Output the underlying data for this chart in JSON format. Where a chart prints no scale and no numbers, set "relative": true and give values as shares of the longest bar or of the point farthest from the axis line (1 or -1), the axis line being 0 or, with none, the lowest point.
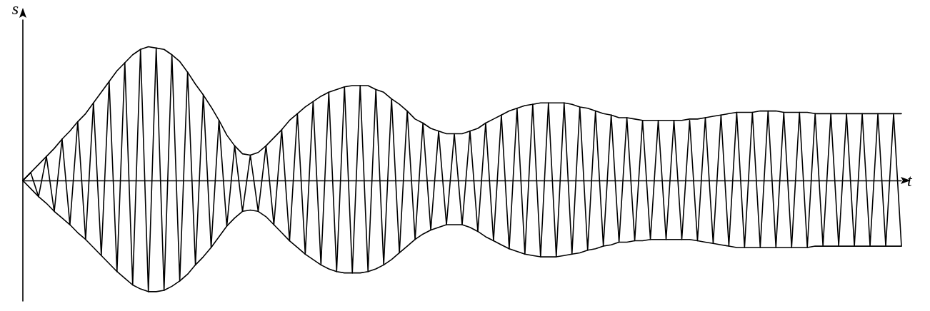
{
  "chart_data": {
    "type": "line",
    "relative": true,
    "xlabel": "t",
    "ylabel": "s",
    "marker": "none",
    "line_style": "solid",
    "grid": false,
    "categories": [
      null,
      null,
      null,
      null,
      null,
      null,
      null,
      null,
      null,
      null,
      null,
      null,
      null,
      null,
      null,
      null,
      null,
      null,
      null,
      null,
      null,
      null,
      null,
      null,
      null,
      null,
      null,
      null,
      null,
      null,
      null,
      null,
      null,
      null,
      null,
      null,
      null,
      null,
      null,
      null,
      null,
      null,
      null,
      null,
      null,
      null,
      null,
      null,
      null,
      null,
      null,
      null,
      null,
      null,
      null,
      null,
      null,
      null,
      null,
      null,
      null,
      null,
      null,
      null,
      null,
      null,
      null,
      null,
      null,
      null,
      null,
      null,
      null,
      null,
      null,
      null,
      null,
      null,
      null,
      null,
      null,
      null,
      null,
      null,
      null,
      null,
      null,
      null,
      null,
      null,
      null,
      null,
      null,
      null,
      null,
      null,
      null,
      null,
      null,
      null,
      null,
      null,
      null,
      null,
      null,
      null,
      null,
      null,
      null,
      null,
      null,
      null,
      null
    ],
    "series": [
      {
        "color": "#000000",
        "values": [
          0,
          0.06,
          0.12,
          0.18,
          0.24,
          0.31,
          0.37,
          0.44,
          0.5,
          0.58,
          0.66,
          0.74,
          0.82,
          0.88,
          0.94,
          0.98,
          1,
          0.99,
          0.98,
          0.94,
          0.89,
          0.81,
          0.72,
          0.64,
          0.55,
          0.45,
          0.34,
          0.26,
          0.2,
          0.19,
          0.21,
          0.26,
          0.32,
          0.38,
          0.45,
          0.5,
          0.55,
          0.59,
          0.63,
          0.66,
          0.68,
          0.7,
          0.71,
          0.71,
          0.71,
          0.68,
          0.66,
          0.61,
          0.57,
          0.52,
          0.46,
          0.43,
          0.39,
          0.37,
          0.35,
          0.35,
          0.35,
          0.37,
          0.39,
          0.43,
          0.46,
          0.49,
          0.52,
          0.54,
          0.56,
          0.57,
          0.58,
          0.58,
          0.58,
          0.58,
          0.57,
          0.55,
          0.54,
          0.52,
          0.5,
          0.49,
          0.47,
          0.47,
          0.46,
          0.45,
          0.45,
          0.45,
          0.45,
          0.45,
          0.45,
          0.46,
          0.46,
          0.47,
          0.48,
          0.49,
          0.5,
          0.51,
          0.51,
          0.51,
          0.52,
          0.52,
          0.52,
          0.51,
          0.51,
          0.51,
          0.51,
          0.5,
          0.5,
          0.5,
          0.5,
          0.5,
          0.5,
          0.5,
          0.5,
          0.5,
          0.5,
          0.5,
          0.5
        ]
      },
      {
        "color": "#000000",
        "values": [
          0,
          -0.06,
          -0.12,
          -0.17,
          -0.23,
          -0.28,
          -0.33,
          -0.39,
          -0.44,
          -0.5,
          -0.56,
          -0.62,
          -0.68,
          -0.73,
          -0.78,
          -0.81,
          -0.83,
          -0.83,
          -0.82,
          -0.79,
          -0.75,
          -0.7,
          -0.63,
          -0.57,
          -0.5,
          -0.42,
          -0.34,
          -0.28,
          -0.23,
          -0.22,
          -0.23,
          -0.27,
          -0.33,
          -0.39,
          -0.45,
          -0.5,
          -0.55,
          -0.59,
          -0.63,
          -0.66,
          -0.68,
          -0.69,
          -0.69,
          -0.69,
          -0.68,
          -0.66,
          -0.63,
          -0.59,
          -0.54,
          -0.49,
          -0.44,
          -0.4,
          -0.37,
          -0.35,
          -0.33,
          -0.33,
          -0.33,
          -0.35,
          -0.38,
          -0.42,
          -0.45,
          -0.48,
          -0.51,
          -0.53,
          -0.55,
          -0.56,
          -0.57,
          -0.57,
          -0.57,
          -0.56,
          -0.55,
          -0.54,
          -0.52,
          -0.51,
          -0.49,
          -0.48,
          -0.46,
          -0.46,
          -0.45,
          -0.45,
          -0.44,
          -0.44,
          -0.44,
          -0.44,
          -0.44,
          -0.44,
          -0.45,
          -0.46,
          -0.47,
          -0.48,
          -0.49,
          -0.5,
          -0.5,
          -0.5,
          -0.5,
          -0.5,
          -0.5,
          -0.5,
          -0.5,
          -0.5,
          -0.5,
          -0.49,
          -0.49,
          -0.49,
          -0.49,
          -0.49,
          -0.49,
          -0.49,
          -0.49,
          -0.49,
          -0.49,
          -0.49,
          -0.49
        ]
      },
      {
        "color": "#000000",
        "values": [
          0,
          0.06,
          -0.12,
          0.18,
          -0.23,
          0.31,
          -0.33,
          0.44,
          -0.44,
          0.58,
          -0.56,
          0.74,
          -0.68,
          0.88,
          -0.78,
          0.98,
          -0.83,
          0.99,
          -0.82,
          0.94,
          -0.75,
          0.81,
          -0.63,
          0.64,
          -0.5,
          0.45,
          -0.34,
          0.26,
          -0.23,
          0.19,
          -0.23,
          0.26,
          -0.33,
          0.38,
          -0.45,
          0.5,
          -0.55,
          0.59,
          -0.63,
          0.66,
          -0.68,
          0.7,
          -0.69,
          0.71,
          -0.68,
          0.68,
          -0.63,
          0.61,
          -0.54,
          0.52,
          -0.44,
          0.43,
          -0.37,
          0.37,
          -0.33,
          0.35,
          -0.33,
          0.37,
          -0.38,
          0.43,
          -0.45,
          0.49,
          -0.51,
          0.54,
          -0.55,
          0.57,
          -0.57,
          0.58,
          -0.57,
          0.58,
          -0.55,
          0.55,
          -0.52,
          0.52,
          -0.49,
          0.49,
          -0.46,
          0.47,
          -0.45,
          0.45,
          -0.44,
          0.45,
          -0.44,
          0.45,
          -0.44,
          0.45,
          -0.45,
          0.47,
          -0.47,
          0.49,
          -0.49,
          0.51,
          -0.5,
          0.51,
          -0.5,
          0.52,
          -0.5,
          0.51,
          -0.5,
          0.51,
          -0.5,
          0.5,
          -0.49,
          0.5,
          -0.49,
          0.5,
          -0.49,
          0.5,
          -0.49,
          0.5,
          -0.49,
          0.5,
          -0.49
        ]
      }
    ]
  }
}
